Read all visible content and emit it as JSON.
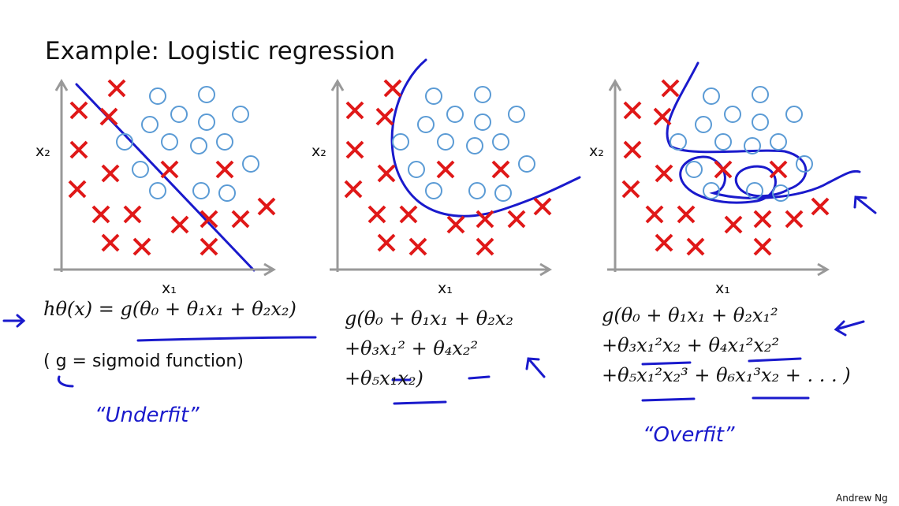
{
  "title": "Example: Logistic regression",
  "panels": [
    {
      "x_label": "x₁",
      "y_label": "x₂",
      "formula": [
        "hθ(x) = g(θ₀ + θ₁x₁ + θ₂x₂)"
      ],
      "note": "( g = sigmoid function)",
      "annotation": "“Underfit”"
    },
    {
      "x_label": "x₁",
      "y_label": "x₂",
      "formula": [
        "g(θ₀ + θ₁x₁ + θ₂x₂",
        "+θ₃x₁² + θ₄x₂²",
        "+θ₅x₁x₂)"
      ]
    },
    {
      "x_label": "x₁",
      "y_label": "x₂",
      "formula": [
        "g(θ₀ + θ₁x₁ + θ₂x₁²",
        "+θ₃x₁²x₂ + θ₄x₁²x₂²",
        "+θ₅x₁²x₂³ + θ₆x₁³x₂ + . . . )"
      ],
      "annotation": "“Overfit”"
    }
  ],
  "footer": "Andrew Ng"
}
